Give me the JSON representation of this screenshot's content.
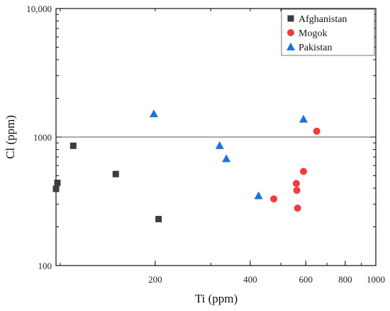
{
  "chart_data": {
    "type": "scatter",
    "xlabel": "Ti (ppm)",
    "ylabel": "Cl  (ppm)",
    "xscale": "log",
    "yscale": "log",
    "xlim": [
      97,
      1000
    ],
    "ylim": [
      100,
      10000
    ],
    "xticks": [
      200,
      400,
      600,
      800,
      1000
    ],
    "yticks": [
      100,
      1000,
      10000
    ],
    "yticklabels": [
      "100",
      "1000",
      "10,000"
    ],
    "reference_line_y": 1000,
    "legend_position": "top-right",
    "series": [
      {
        "name": "Afghanistan",
        "marker": "square",
        "color": "#3d3d3d",
        "x": [
          97,
          98,
          110,
          150,
          205
        ],
        "y": [
          395,
          440,
          855,
          515,
          230
        ]
      },
      {
        "name": "Mogok",
        "marker": "circle",
        "color": "#f03c3c",
        "x": [
          475,
          560,
          562,
          565,
          590,
          650
        ],
        "y": [
          330,
          435,
          385,
          280,
          540,
          1110
        ]
      },
      {
        "name": "Pakistan",
        "marker": "triangle",
        "color": "#1a72d9",
        "x": [
          198,
          320,
          336,
          425,
          590
        ],
        "y": [
          1520,
          860,
          680,
          350,
          1380
        ]
      }
    ]
  }
}
